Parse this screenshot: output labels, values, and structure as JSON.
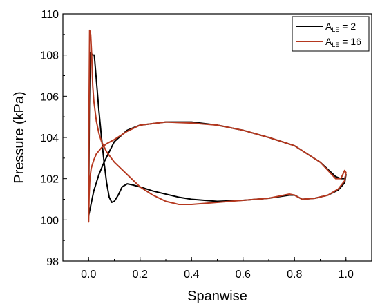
{
  "chart_data": {
    "type": "line",
    "xlabel": "Spanwise",
    "ylabel": "Pressure (kPa)",
    "xlim": [
      -0.1,
      1.1
    ],
    "ylim": [
      98,
      110
    ],
    "xticks": [
      "0.0",
      "0.2",
      "0.4",
      "0.6",
      "0.8",
      "1.0"
    ],
    "xtick_values": [
      0.0,
      0.2,
      0.4,
      0.6,
      0.8,
      1.0
    ],
    "yticks": [
      "98",
      "100",
      "102",
      "104",
      "106",
      "108",
      "110"
    ],
    "ytick_values": [
      98,
      100,
      102,
      104,
      106,
      108,
      110
    ],
    "grid": false,
    "legend_position": "top-right",
    "series": [
      {
        "name": "A_LE = 2",
        "legend_main": "A",
        "legend_sub": "LE",
        "legend_rest": " = 2",
        "color": "#000000",
        "x": [
          0.0,
          0.003,
          0.006,
          0.01,
          0.015,
          0.022,
          0.03,
          0.04,
          0.05,
          0.06,
          0.07,
          0.08,
          0.09,
          0.1,
          0.115,
          0.13,
          0.15,
          0.17,
          0.2,
          0.25,
          0.3,
          0.35,
          0.4,
          0.5,
          0.6,
          0.7,
          0.78,
          0.8,
          0.83,
          0.88,
          0.93,
          0.97,
          0.995,
          1.0,
          0.995,
          0.98,
          0.96,
          0.9,
          0.8,
          0.7,
          0.6,
          0.5,
          0.4,
          0.3,
          0.2,
          0.15,
          0.1,
          0.08,
          0.06,
          0.04,
          0.02,
          0.01,
          0.005,
          0.0
        ],
        "y": [
          100.2,
          105.5,
          108.1,
          108.1,
          108.0,
          108.0,
          106.8,
          105.3,
          104.0,
          102.8,
          101.8,
          101.1,
          100.85,
          100.9,
          101.2,
          101.6,
          101.75,
          101.7,
          101.6,
          101.4,
          101.25,
          101.1,
          101.0,
          100.9,
          100.95,
          101.05,
          101.2,
          101.2,
          101.0,
          101.05,
          101.2,
          101.45,
          101.8,
          102.2,
          102.0,
          102.0,
          102.1,
          102.8,
          103.6,
          104.0,
          104.35,
          104.6,
          104.75,
          104.75,
          104.6,
          104.35,
          103.8,
          103.3,
          102.8,
          102.2,
          101.4,
          100.8,
          100.5,
          100.2
        ]
      },
      {
        "name": "A_LE = 16",
        "legend_main": "A",
        "legend_sub": "LE",
        "legend_rest": " = 16",
        "color": "#b5381f",
        "x": [
          0.0,
          0.002,
          0.004,
          0.008,
          0.012,
          0.016,
          0.02,
          0.025,
          0.03,
          0.04,
          0.05,
          0.07,
          0.1,
          0.15,
          0.2,
          0.25,
          0.3,
          0.35,
          0.4,
          0.5,
          0.6,
          0.7,
          0.78,
          0.8,
          0.83,
          0.88,
          0.93,
          0.97,
          0.995,
          1.0,
          0.995,
          0.98,
          0.96,
          0.9,
          0.8,
          0.7,
          0.6,
          0.5,
          0.4,
          0.3,
          0.2,
          0.15,
          0.1,
          0.07,
          0.05,
          0.03,
          0.02,
          0.01,
          0.005,
          0.002,
          0.0
        ],
        "y": [
          99.9,
          106.0,
          109.2,
          109.0,
          108.0,
          106.5,
          105.8,
          105.3,
          104.8,
          104.2,
          103.8,
          103.3,
          102.8,
          102.2,
          101.6,
          101.2,
          100.9,
          100.75,
          100.75,
          100.85,
          100.95,
          101.05,
          101.25,
          101.2,
          101.0,
          101.05,
          101.2,
          101.5,
          101.9,
          102.3,
          102.4,
          102.0,
          102.0,
          102.8,
          103.6,
          104.0,
          104.35,
          104.6,
          104.7,
          104.75,
          104.6,
          104.3,
          103.9,
          103.7,
          103.5,
          103.2,
          102.9,
          102.5,
          102.0,
          101.2,
          99.9
        ]
      }
    ]
  }
}
